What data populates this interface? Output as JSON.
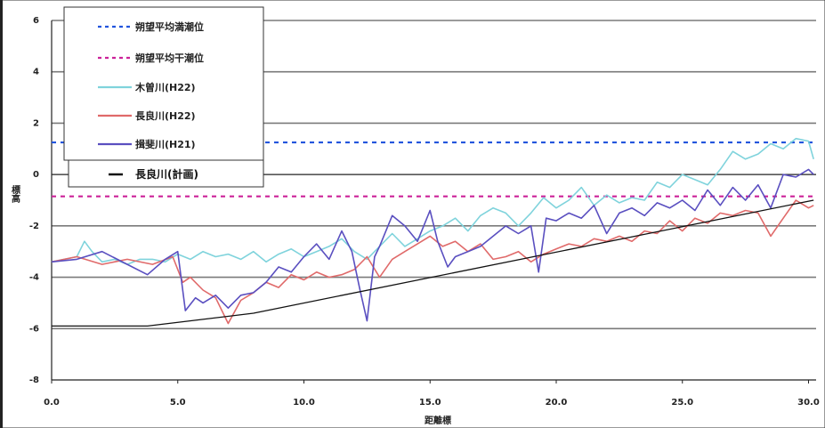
{
  "chart_data": {
    "type": "line",
    "xlabel": "距離標",
    "ylabel": "標高",
    "xlim": [
      0,
      30.3
    ],
    "ylim": [
      -8,
      6
    ],
    "xticks": [
      "0.0",
      "5.0",
      "10.0",
      "15.0",
      "20.0",
      "25.0",
      "30.0"
    ],
    "yticks": [
      "6",
      "4",
      "2",
      "0",
      "-2",
      "-4",
      "-6",
      "-8"
    ],
    "grid": true,
    "legend_position": "top-left",
    "reference_lines": [
      {
        "name": "朔望平均満潮位",
        "y": 1.25,
        "color": "#2255dd",
        "dash": true
      },
      {
        "name": "朔望平均干潮位",
        "y": -0.85,
        "color": "#cc2299",
        "dash": true
      }
    ],
    "series": [
      {
        "name": "木曽川(H22)",
        "color": "#7fd3dc",
        "x": [
          0,
          0.5,
          1,
          1.3,
          1.6,
          2,
          2.5,
          3,
          3.5,
          4,
          4.5,
          5,
          5.5,
          6,
          6.5,
          7,
          7.5,
          8,
          8.5,
          9,
          9.5,
          10,
          10.5,
          11,
          11.5,
          12,
          12.5,
          13,
          13.5,
          14,
          14.5,
          15,
          15.5,
          16,
          16.5,
          17,
          17.5,
          18,
          18.5,
          19,
          19.5,
          20,
          20.5,
          21,
          21.5,
          22,
          22.5,
          23,
          23.5,
          24,
          24.5,
          25,
          25.5,
          26,
          26.5,
          27,
          27.5,
          28,
          28.5,
          29,
          29.5,
          30,
          30.2
        ],
        "values": [
          -3.4,
          -3.3,
          -3.2,
          -2.6,
          -3.0,
          -3.4,
          -3.3,
          -3.5,
          -3.3,
          -3.3,
          -3.4,
          -3.1,
          -3.3,
          -3.0,
          -3.2,
          -3.1,
          -3.3,
          -3.0,
          -3.4,
          -3.1,
          -2.9,
          -3.2,
          -3.0,
          -2.8,
          -2.5,
          -3.0,
          -3.3,
          -2.8,
          -2.3,
          -2.8,
          -2.5,
          -2.2,
          -2.0,
          -1.7,
          -2.2,
          -1.6,
          -1.3,
          -1.5,
          -2.0,
          -1.5,
          -0.9,
          -1.3,
          -1.0,
          -0.5,
          -1.2,
          -0.8,
          -1.1,
          -0.9,
          -1.0,
          -0.3,
          -0.5,
          0.0,
          -0.2,
          -0.4,
          0.2,
          0.9,
          0.6,
          0.8,
          1.2,
          1.0,
          1.4,
          1.3,
          0.6
        ]
      },
      {
        "name": "長良川(H22)",
        "color": "#e06a6a",
        "x": [
          0,
          1,
          2,
          3,
          4,
          4.8,
          5.2,
          5.5,
          6,
          6.5,
          7,
          7.5,
          8,
          8.5,
          9,
          9.5,
          10,
          10.5,
          11,
          11.5,
          12,
          12.5,
          13,
          13.5,
          14,
          14.5,
          15,
          15.5,
          16,
          16.5,
          17,
          17.5,
          18,
          18.5,
          19,
          19.5,
          20,
          20.5,
          21,
          21.5,
          22,
          22.5,
          23,
          23.5,
          24,
          24.5,
          25,
          25.5,
          26,
          26.5,
          27,
          27.5,
          28,
          28.5,
          29,
          29.5,
          30,
          30.2
        ],
        "values": [
          -3.4,
          -3.2,
          -3.5,
          -3.3,
          -3.5,
          -3.2,
          -4.2,
          -4.0,
          -4.5,
          -4.8,
          -5.8,
          -4.9,
          -4.6,
          -4.2,
          -4.4,
          -3.9,
          -4.1,
          -3.8,
          -4.0,
          -3.9,
          -3.7,
          -3.2,
          -4.0,
          -3.3,
          -3.0,
          -2.7,
          -2.4,
          -2.8,
          -2.6,
          -3.0,
          -2.7,
          -3.3,
          -3.2,
          -3.0,
          -3.4,
          -3.1,
          -2.9,
          -2.7,
          -2.8,
          -2.5,
          -2.6,
          -2.4,
          -2.6,
          -2.2,
          -2.3,
          -1.8,
          -2.2,
          -1.7,
          -1.9,
          -1.5,
          -1.6,
          -1.4,
          -1.5,
          -2.4,
          -1.7,
          -1.0,
          -1.3,
          -1.2
        ]
      },
      {
        "name": "揖斐川(H21)",
        "color": "#5a4fc0",
        "x": [
          0,
          1,
          2,
          3,
          3.8,
          4.5,
          5,
          5.3,
          5.7,
          6,
          6.5,
          7,
          7.5,
          8,
          8.5,
          9,
          9.5,
          10,
          10.5,
          11,
          11.5,
          11.9,
          12.2,
          12.5,
          12.8,
          13,
          13.5,
          14,
          14.5,
          15,
          15.3,
          15.7,
          16,
          16.5,
          17,
          17.5,
          18,
          18.5,
          19,
          19.3,
          19.6,
          20,
          20.5,
          21,
          21.5,
          22,
          22.5,
          23,
          23.5,
          24,
          24.5,
          25,
          25.5,
          26,
          26.5,
          27,
          27.5,
          28,
          28.5,
          29,
          29.5,
          30,
          30.2
        ],
        "values": [
          -3.4,
          -3.3,
          -3.0,
          -3.5,
          -3.9,
          -3.3,
          -3.0,
          -5.3,
          -4.8,
          -5.0,
          -4.7,
          -5.2,
          -4.7,
          -4.6,
          -4.2,
          -3.6,
          -3.8,
          -3.2,
          -2.7,
          -3.3,
          -2.2,
          -3.0,
          -4.4,
          -5.7,
          -3.2,
          -2.8,
          -1.6,
          -2.0,
          -2.6,
          -1.4,
          -2.6,
          -3.6,
          -3.2,
          -3.0,
          -2.8,
          -2.4,
          -2.0,
          -2.3,
          -2.0,
          -3.8,
          -1.7,
          -1.8,
          -1.5,
          -1.7,
          -1.2,
          -2.3,
          -1.5,
          -1.3,
          -1.6,
          -1.1,
          -1.3,
          -1.0,
          -1.4,
          -0.6,
          -1.2,
          -0.5,
          -1.0,
          -0.4,
          -1.3,
          0.0,
          -0.1,
          0.2,
          0.0
        ]
      },
      {
        "name": "長良川(計画)",
        "color": "#111111",
        "x": [
          0,
          3.8,
          8,
          30.2
        ],
        "values": [
          -5.9,
          -5.9,
          -5.4,
          -1.0
        ]
      }
    ]
  }
}
